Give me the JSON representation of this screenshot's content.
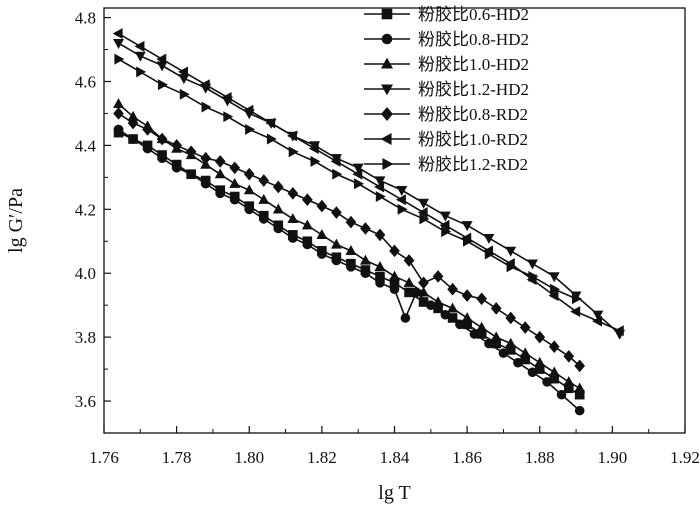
{
  "chart_data": {
    "type": "scatter",
    "title": "",
    "xlabel": "lg T",
    "ylabel": "lg G′/Pa",
    "xlim": [
      1.76,
      1.92
    ],
    "ylim": [
      3.5,
      4.83
    ],
    "xticks": [
      1.76,
      1.78,
      1.8,
      1.82,
      1.84,
      1.86,
      1.88,
      1.9,
      1.92
    ],
    "xtick_labels": [
      "1.76",
      "1.78",
      "1.80",
      "1.82",
      "1.84",
      "1.86",
      "1.88",
      "1.90",
      "1.92"
    ],
    "yticks": [
      3.6,
      3.8,
      4.0,
      4.2,
      4.4,
      4.6,
      4.8
    ],
    "ytick_labels": [
      "3.6",
      "3.8",
      "4.0",
      "4.2",
      "4.4",
      "4.6",
      "4.8"
    ],
    "grid": false,
    "legend_position": "top-right",
    "series": [
      {
        "name": "粉胶比0.6-HD2",
        "marker": "square",
        "x": [
          1.764,
          1.768,
          1.772,
          1.776,
          1.78,
          1.784,
          1.788,
          1.792,
          1.796,
          1.8,
          1.804,
          1.808,
          1.812,
          1.816,
          1.82,
          1.824,
          1.828,
          1.832,
          1.836,
          1.84,
          1.844,
          1.848,
          1.852,
          1.856,
          1.86,
          1.864,
          1.868,
          1.872,
          1.876,
          1.88,
          1.884,
          1.888,
          1.891
        ],
        "y": [
          4.44,
          4.42,
          4.4,
          4.37,
          4.34,
          4.31,
          4.29,
          4.26,
          4.24,
          4.21,
          4.18,
          4.15,
          4.12,
          4.1,
          4.07,
          4.05,
          4.03,
          4.01,
          3.99,
          3.97,
          3.94,
          3.91,
          3.89,
          3.86,
          3.84,
          3.81,
          3.78,
          3.76,
          3.73,
          3.7,
          3.67,
          3.64,
          3.62
        ]
      },
      {
        "name": "粉胶比0.8-HD2",
        "marker": "circle",
        "x": [
          1.764,
          1.768,
          1.772,
          1.776,
          1.78,
          1.784,
          1.788,
          1.792,
          1.796,
          1.8,
          1.804,
          1.808,
          1.812,
          1.816,
          1.82,
          1.824,
          1.828,
          1.832,
          1.836,
          1.84,
          1.843,
          1.846,
          1.85,
          1.854,
          1.858,
          1.862,
          1.866,
          1.87,
          1.874,
          1.878,
          1.882,
          1.886,
          1.891
        ],
        "y": [
          4.45,
          4.42,
          4.39,
          4.36,
          4.33,
          4.31,
          4.28,
          4.25,
          4.23,
          4.2,
          4.17,
          4.14,
          4.11,
          4.09,
          4.06,
          4.04,
          4.02,
          4.0,
          3.97,
          3.95,
          3.86,
          3.94,
          3.9,
          3.87,
          3.84,
          3.81,
          3.78,
          3.75,
          3.72,
          3.69,
          3.66,
          3.62,
          3.57
        ]
      },
      {
        "name": "粉胶比1.0-HD2",
        "marker": "triangle-up",
        "x": [
          1.764,
          1.768,
          1.772,
          1.776,
          1.78,
          1.784,
          1.788,
          1.792,
          1.796,
          1.8,
          1.804,
          1.808,
          1.812,
          1.816,
          1.82,
          1.824,
          1.828,
          1.832,
          1.836,
          1.84,
          1.844,
          1.848,
          1.852,
          1.856,
          1.86,
          1.864,
          1.868,
          1.872,
          1.876,
          1.88,
          1.884,
          1.888,
          1.891
        ],
        "y": [
          4.53,
          4.49,
          4.46,
          4.42,
          4.39,
          4.37,
          4.34,
          4.31,
          4.28,
          4.26,
          4.23,
          4.2,
          4.17,
          4.15,
          4.12,
          4.09,
          4.07,
          4.04,
          4.02,
          3.99,
          3.97,
          3.94,
          3.91,
          3.89,
          3.86,
          3.83,
          3.8,
          3.78,
          3.75,
          3.72,
          3.69,
          3.66,
          3.64
        ]
      },
      {
        "name": "粉胶比1.2-HD2",
        "marker": "triangle-down",
        "x": [
          1.764,
          1.77,
          1.776,
          1.782,
          1.788,
          1.794,
          1.8,
          1.806,
          1.812,
          1.818,
          1.824,
          1.83,
          1.836,
          1.842,
          1.848,
          1.854,
          1.86,
          1.866,
          1.872,
          1.878,
          1.884,
          1.89,
          1.896,
          1.902
        ],
        "y": [
          4.72,
          4.68,
          4.65,
          4.61,
          4.58,
          4.54,
          4.5,
          4.47,
          4.43,
          4.4,
          4.36,
          4.33,
          4.29,
          4.26,
          4.22,
          4.18,
          4.15,
          4.11,
          4.07,
          4.03,
          3.99,
          3.93,
          3.87,
          3.81
        ]
      },
      {
        "name": "粉胶比0.8-RD2",
        "marker": "diamond",
        "x": [
          1.764,
          1.768,
          1.772,
          1.776,
          1.78,
          1.784,
          1.788,
          1.792,
          1.796,
          1.8,
          1.804,
          1.808,
          1.812,
          1.816,
          1.82,
          1.824,
          1.828,
          1.832,
          1.836,
          1.84,
          1.844,
          1.848,
          1.852,
          1.856,
          1.86,
          1.864,
          1.868,
          1.872,
          1.876,
          1.88,
          1.884,
          1.888,
          1.891
        ],
        "y": [
          4.5,
          4.47,
          4.45,
          4.42,
          4.4,
          4.38,
          4.36,
          4.35,
          4.33,
          4.31,
          4.29,
          4.27,
          4.25,
          4.23,
          4.21,
          4.19,
          4.16,
          4.14,
          4.12,
          4.07,
          4.04,
          3.97,
          3.99,
          3.95,
          3.93,
          3.92,
          3.89,
          3.86,
          3.83,
          3.8,
          3.77,
          3.74,
          3.71
        ]
      },
      {
        "name": "粉胶比1.0-RD2",
        "marker": "triangle-left",
        "x": [
          1.764,
          1.77,
          1.776,
          1.782,
          1.788,
          1.794,
          1.8,
          1.806,
          1.812,
          1.818,
          1.824,
          1.83,
          1.836,
          1.842,
          1.848,
          1.854,
          1.86,
          1.866,
          1.872,
          1.878,
          1.884,
          1.89,
          1.896,
          1.902
        ],
        "y": [
          4.75,
          4.71,
          4.67,
          4.63,
          4.59,
          4.55,
          4.51,
          4.47,
          4.43,
          4.39,
          4.35,
          4.31,
          4.27,
          4.23,
          4.19,
          4.15,
          4.11,
          4.07,
          4.03,
          3.98,
          3.93,
          3.88,
          3.85,
          3.82
        ]
      },
      {
        "name": "粉胶比1.2-RD2",
        "marker": "triangle-right",
        "x": [
          1.764,
          1.77,
          1.776,
          1.782,
          1.788,
          1.794,
          1.8,
          1.806,
          1.812,
          1.818,
          1.824,
          1.83,
          1.836,
          1.842,
          1.848,
          1.854,
          1.86,
          1.866,
          1.872,
          1.878,
          1.884,
          1.89
        ],
        "y": [
          4.67,
          4.63,
          4.59,
          4.56,
          4.52,
          4.49,
          4.45,
          4.42,
          4.38,
          4.35,
          4.31,
          4.28,
          4.24,
          4.2,
          4.17,
          4.13,
          4.1,
          4.06,
          4.02,
          3.99,
          3.95,
          3.92
        ]
      }
    ]
  }
}
